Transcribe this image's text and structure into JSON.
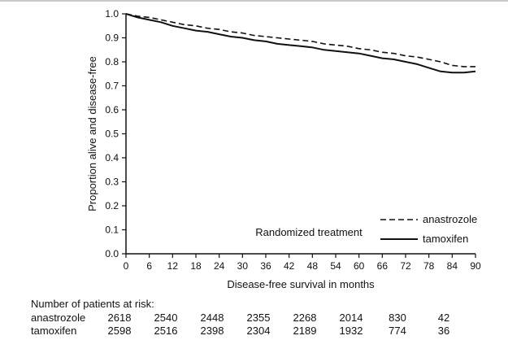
{
  "chart_data": {
    "type": "line",
    "title": "",
    "xlabel": "Disease-free survival in months",
    "ylabel": "Proportion alive and disease-free",
    "xlim": [
      0,
      90
    ],
    "ylim": [
      0.0,
      1.0
    ],
    "xticks": [
      0,
      6,
      12,
      18,
      24,
      30,
      36,
      42,
      48,
      54,
      60,
      66,
      72,
      78,
      84,
      90
    ],
    "yticks": [
      0.0,
      0.1,
      0.2,
      0.3,
      0.4,
      0.5,
      0.6,
      0.7,
      0.8,
      0.9,
      1.0
    ],
    "grid": false,
    "legend_title": "Randomized treatment",
    "legend_position": "lower right inside plot",
    "line_color": "#111111",
    "series": [
      {
        "name": "anastrozole",
        "style": "dashed",
        "x": [
          0,
          3,
          6,
          9,
          12,
          15,
          18,
          21,
          24,
          27,
          30,
          33,
          36,
          39,
          42,
          45,
          48,
          51,
          54,
          57,
          60,
          63,
          66,
          69,
          72,
          75,
          78,
          81,
          84,
          87,
          90
        ],
        "y": [
          1.0,
          0.99,
          0.985,
          0.975,
          0.965,
          0.955,
          0.95,
          0.94,
          0.935,
          0.925,
          0.92,
          0.91,
          0.905,
          0.9,
          0.895,
          0.89,
          0.885,
          0.875,
          0.87,
          0.865,
          0.855,
          0.85,
          0.84,
          0.835,
          0.825,
          0.82,
          0.81,
          0.8,
          0.785,
          0.78,
          0.78
        ]
      },
      {
        "name": "tamoxifen",
        "style": "solid",
        "x": [
          0,
          3,
          6,
          9,
          12,
          15,
          18,
          21,
          24,
          27,
          30,
          33,
          36,
          39,
          42,
          45,
          48,
          51,
          54,
          57,
          60,
          63,
          66,
          69,
          72,
          75,
          78,
          81,
          84,
          87,
          90
        ],
        "y": [
          1.0,
          0.985,
          0.975,
          0.965,
          0.95,
          0.94,
          0.93,
          0.925,
          0.915,
          0.905,
          0.9,
          0.89,
          0.885,
          0.875,
          0.87,
          0.865,
          0.86,
          0.85,
          0.845,
          0.84,
          0.835,
          0.825,
          0.815,
          0.81,
          0.8,
          0.79,
          0.775,
          0.76,
          0.755,
          0.755,
          0.76
        ]
      }
    ]
  },
  "risk_table": {
    "title": "Number of patients at risk:",
    "columns_at_months": [
      0,
      12,
      24,
      36,
      48,
      60,
      72,
      84
    ],
    "rows": [
      {
        "label": "anastrozole",
        "values": [
          "2618",
          "2540",
          "2448",
          "2355",
          "2268",
          "2014",
          "830",
          "42"
        ]
      },
      {
        "label": "tamoxifen",
        "values": [
          "2598",
          "2516",
          "2398",
          "2304",
          "2189",
          "1932",
          "774",
          "36"
        ]
      }
    ]
  }
}
